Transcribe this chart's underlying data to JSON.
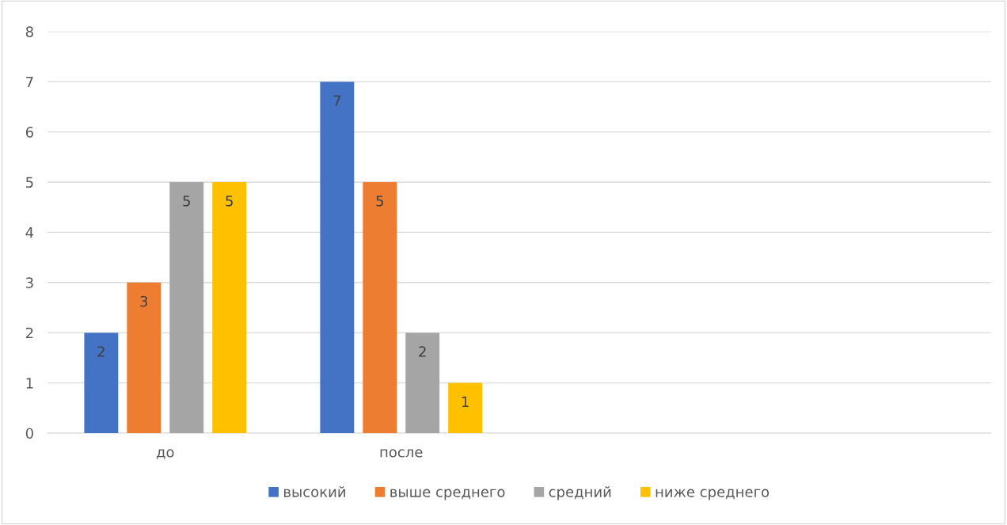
{
  "chart_data": {
    "type": "bar",
    "categories": [
      "до",
      "после",
      null,
      null
    ],
    "series": [
      {
        "name": "высокий",
        "color": "#4472c4",
        "values": [
          2,
          7,
          null,
          null
        ]
      },
      {
        "name": "выше среднего",
        "color": "#ed7d31",
        "values": [
          3,
          5,
          null,
          null
        ]
      },
      {
        "name": "средний",
        "color": "#a5a5a5",
        "values": [
          5,
          2,
          null,
          null
        ]
      },
      {
        "name": "ниже среднего",
        "color": "#ffc000",
        "values": [
          5,
          1,
          null,
          null
        ]
      }
    ],
    "ylim": [
      0,
      8
    ],
    "yticks": [
      0,
      1,
      2,
      3,
      4,
      5,
      6,
      7,
      8
    ],
    "grid": "y",
    "legend": "bottom",
    "data_labels": true
  }
}
